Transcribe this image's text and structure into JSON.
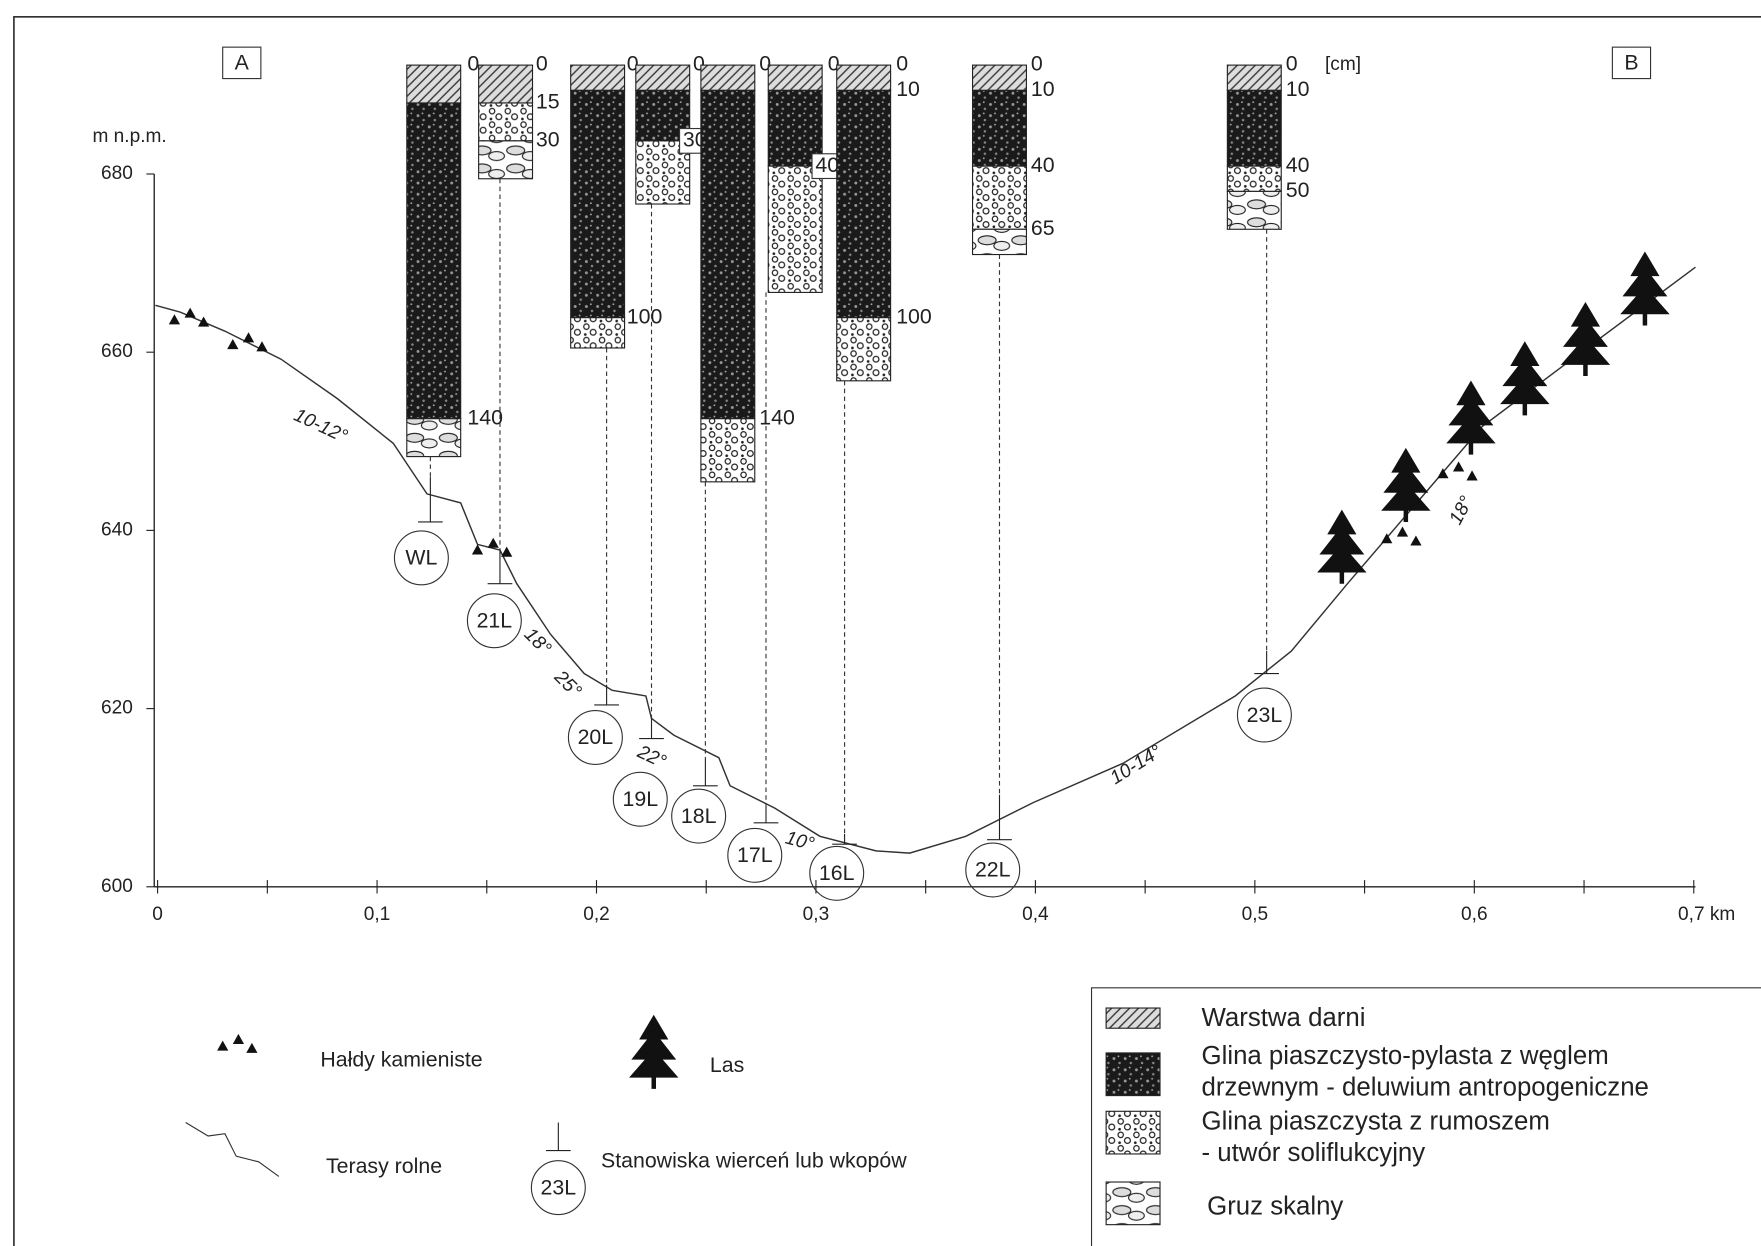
{
  "markers": {
    "a": "A",
    "b": "B"
  },
  "y_axis": {
    "label": "m n.p.m.",
    "ticks": [
      "680",
      "660",
      "640",
      "620",
      "600"
    ]
  },
  "x_axis": {
    "ticks": [
      "0",
      "0,1",
      "0,2",
      "0,3",
      "0,4",
      "0,5",
      "0,6"
    ],
    "end_label": "0,7 km"
  },
  "depth_unit": "[cm]",
  "stations": [
    {
      "label": "WL",
      "depths": [
        "0",
        "140"
      ]
    },
    {
      "label": "21L",
      "depths": [
        "0",
        "15",
        "30"
      ]
    },
    {
      "label": "20L",
      "depths": [
        "0",
        "100"
      ]
    },
    {
      "label": "19L",
      "depths": [
        "0",
        "30"
      ]
    },
    {
      "label": "18L",
      "depths": [
        "0",
        "140"
      ]
    },
    {
      "label": "17L",
      "depths": [
        "0",
        "40"
      ]
    },
    {
      "label": "16L",
      "depths": [
        "0",
        "10",
        "100"
      ]
    },
    {
      "label": "22L",
      "depths": [
        "0",
        "10",
        "40",
        "65"
      ]
    },
    {
      "label": "23L",
      "depths": [
        "0",
        "10",
        "40",
        "50"
      ]
    }
  ],
  "slopes": [
    "10-12°",
    "18°",
    "25°",
    "22°",
    "10°",
    "10-14°",
    "18°"
  ],
  "legend": {
    "stones": "Hałdy kamieniste",
    "forest": "Las",
    "terraces": "Terasy rolne",
    "station_example": "23L",
    "stations": "Stanowiska wierceń lub wkopów",
    "sod": "Warstwa darni",
    "loam": [
      "Glina piaszczysto-pylasta z węglem",
      "drzewnym - deluwium antropogeniczne"
    ],
    "rubble": [
      "Glina piaszczysta z rumoszem",
      "- utwór soliflukcyjny"
    ],
    "debris": "Gruz skalny"
  }
}
